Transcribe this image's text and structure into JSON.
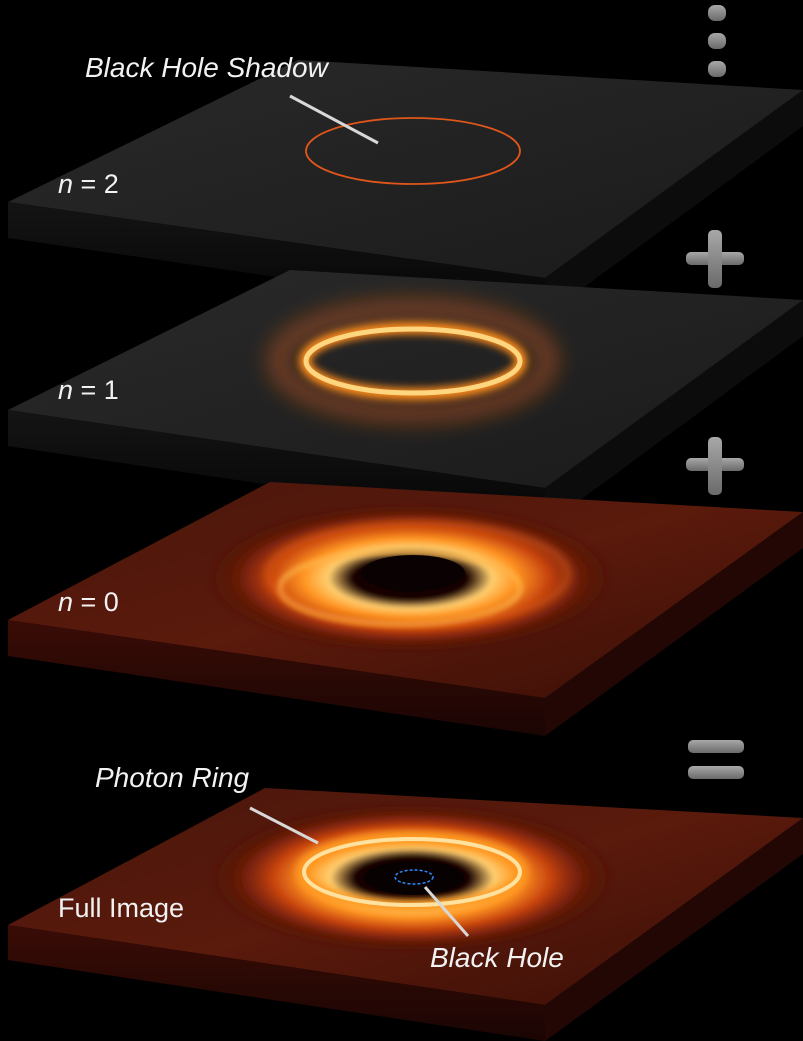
{
  "labels": {
    "black_hole_shadow": "Black Hole Shadow",
    "n2_var": "n",
    "n2_eq": " = 2",
    "n1_var": "n",
    "n1_eq": " = 1",
    "n0_var": "n",
    "n0_eq": " = 0",
    "photon_ring": "Photon Ring",
    "full_image": "Full Image",
    "black_hole": "Black Hole"
  },
  "operators": [
    "continuation-dots",
    "plus",
    "plus",
    "equals"
  ],
  "colors": {
    "background": "#000000",
    "slab_top_dark": "#232323",
    "ring_core": "#ffe9a8",
    "ring_mid": "#ff9a1e",
    "ring_outer": "#c83c0a",
    "disk_base": "#4a1208",
    "operator_gray": "#8a8a8a",
    "marker_blue": "#2a8cff",
    "text": "#f2f2f2"
  }
}
